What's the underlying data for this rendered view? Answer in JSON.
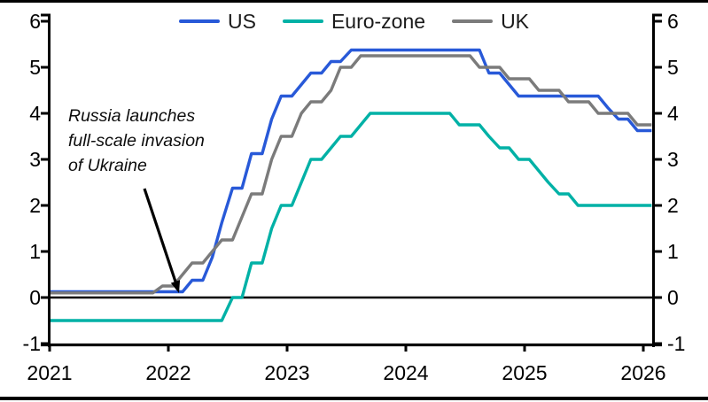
{
  "legend": {
    "items": [
      {
        "label": "US"
      },
      {
        "label": "Euro-zone"
      },
      {
        "label": "UK"
      }
    ]
  },
  "annotation": {
    "lines": [
      "Russia launches",
      "full-scale invasion",
      "of Ukraine"
    ]
  },
  "axes": {
    "y_ticks_left": [
      "6",
      "5",
      "4",
      "3",
      "2",
      "1",
      "0",
      "-1"
    ],
    "y_ticks_right": [
      "6",
      "5",
      "4",
      "3",
      "2",
      "1",
      "0",
      "-1"
    ],
    "x_ticks": [
      "2021",
      "2022",
      "2023",
      "2024",
      "2025",
      "2026"
    ]
  },
  "chart_data": {
    "type": "line",
    "title": "",
    "xlabel": "",
    "ylabel": "",
    "x_range": [
      2021,
      2026.1
    ],
    "y_range": [
      -1,
      6
    ],
    "grid": false,
    "legend_position": "top-center",
    "y_ticks": [
      6,
      5,
      4,
      3,
      2,
      1,
      0,
      -1
    ],
    "x_ticks": [
      2021,
      2022,
      2023,
      2024,
      2025,
      2026
    ],
    "zero_baseline": true,
    "annotation_arrow_points_to": [
      2022.15,
      0
    ],
    "series": [
      {
        "name": "US",
        "color": "#2859d8",
        "points": [
          [
            2021.0,
            0.125
          ],
          [
            2022.12,
            0.125
          ],
          [
            2022.2,
            0.375
          ],
          [
            2022.29,
            0.375
          ],
          [
            2022.37,
            0.875
          ],
          [
            2022.45,
            1.625
          ],
          [
            2022.54,
            2.375
          ],
          [
            2022.62,
            2.375
          ],
          [
            2022.7,
            3.125
          ],
          [
            2022.79,
            3.125
          ],
          [
            2022.87,
            3.875
          ],
          [
            2022.95,
            4.375
          ],
          [
            2023.04,
            4.375
          ],
          [
            2023.12,
            4.625
          ],
          [
            2023.2,
            4.875
          ],
          [
            2023.29,
            4.875
          ],
          [
            2023.37,
            5.125
          ],
          [
            2023.45,
            5.125
          ],
          [
            2023.54,
            5.375
          ],
          [
            2024.62,
            5.375
          ],
          [
            2024.7,
            4.875
          ],
          [
            2024.79,
            4.875
          ],
          [
            2024.87,
            4.625
          ],
          [
            2024.95,
            4.375
          ],
          [
            2025.62,
            4.375
          ],
          [
            2025.7,
            4.125
          ],
          [
            2025.79,
            3.875
          ],
          [
            2025.87,
            3.875
          ],
          [
            2025.95,
            3.625
          ],
          [
            2026.07,
            3.625
          ]
        ]
      },
      {
        "name": "Euro-zone",
        "color": "#00b1a6",
        "points": [
          [
            2021.0,
            -0.5
          ],
          [
            2022.45,
            -0.5
          ],
          [
            2022.54,
            0.0
          ],
          [
            2022.62,
            0.0
          ],
          [
            2022.7,
            0.75
          ],
          [
            2022.79,
            0.75
          ],
          [
            2022.87,
            1.5
          ],
          [
            2022.95,
            2.0
          ],
          [
            2023.04,
            2.0
          ],
          [
            2023.12,
            2.5
          ],
          [
            2023.2,
            3.0
          ],
          [
            2023.29,
            3.0
          ],
          [
            2023.37,
            3.25
          ],
          [
            2023.45,
            3.5
          ],
          [
            2023.54,
            3.5
          ],
          [
            2023.62,
            3.75
          ],
          [
            2023.7,
            4.0
          ],
          [
            2024.37,
            4.0
          ],
          [
            2024.45,
            3.75
          ],
          [
            2024.62,
            3.75
          ],
          [
            2024.7,
            3.5
          ],
          [
            2024.79,
            3.25
          ],
          [
            2024.87,
            3.25
          ],
          [
            2024.95,
            3.0
          ],
          [
            2025.04,
            3.0
          ],
          [
            2025.12,
            2.75
          ],
          [
            2025.2,
            2.5
          ],
          [
            2025.29,
            2.25
          ],
          [
            2025.37,
            2.25
          ],
          [
            2025.45,
            2.0
          ],
          [
            2026.07,
            2.0
          ]
        ]
      },
      {
        "name": "UK",
        "color": "#7b7b7b",
        "points": [
          [
            2021.0,
            0.1
          ],
          [
            2021.87,
            0.1
          ],
          [
            2021.95,
            0.25
          ],
          [
            2022.04,
            0.25
          ],
          [
            2022.12,
            0.5
          ],
          [
            2022.2,
            0.75
          ],
          [
            2022.29,
            0.75
          ],
          [
            2022.37,
            1.0
          ],
          [
            2022.45,
            1.25
          ],
          [
            2022.54,
            1.25
          ],
          [
            2022.62,
            1.75
          ],
          [
            2022.7,
            2.25
          ],
          [
            2022.79,
            2.25
          ],
          [
            2022.87,
            3.0
          ],
          [
            2022.95,
            3.5
          ],
          [
            2023.04,
            3.5
          ],
          [
            2023.12,
            4.0
          ],
          [
            2023.2,
            4.25
          ],
          [
            2023.29,
            4.25
          ],
          [
            2023.37,
            4.5
          ],
          [
            2023.45,
            5.0
          ],
          [
            2023.54,
            5.0
          ],
          [
            2023.62,
            5.25
          ],
          [
            2024.54,
            5.25
          ],
          [
            2024.62,
            5.0
          ],
          [
            2024.79,
            5.0
          ],
          [
            2024.87,
            4.75
          ],
          [
            2025.04,
            4.75
          ],
          [
            2025.12,
            4.5
          ],
          [
            2025.29,
            4.5
          ],
          [
            2025.37,
            4.25
          ],
          [
            2025.54,
            4.25
          ],
          [
            2025.62,
            4.0
          ],
          [
            2025.87,
            4.0
          ],
          [
            2025.95,
            3.75
          ],
          [
            2026.07,
            3.75
          ]
        ]
      }
    ]
  }
}
